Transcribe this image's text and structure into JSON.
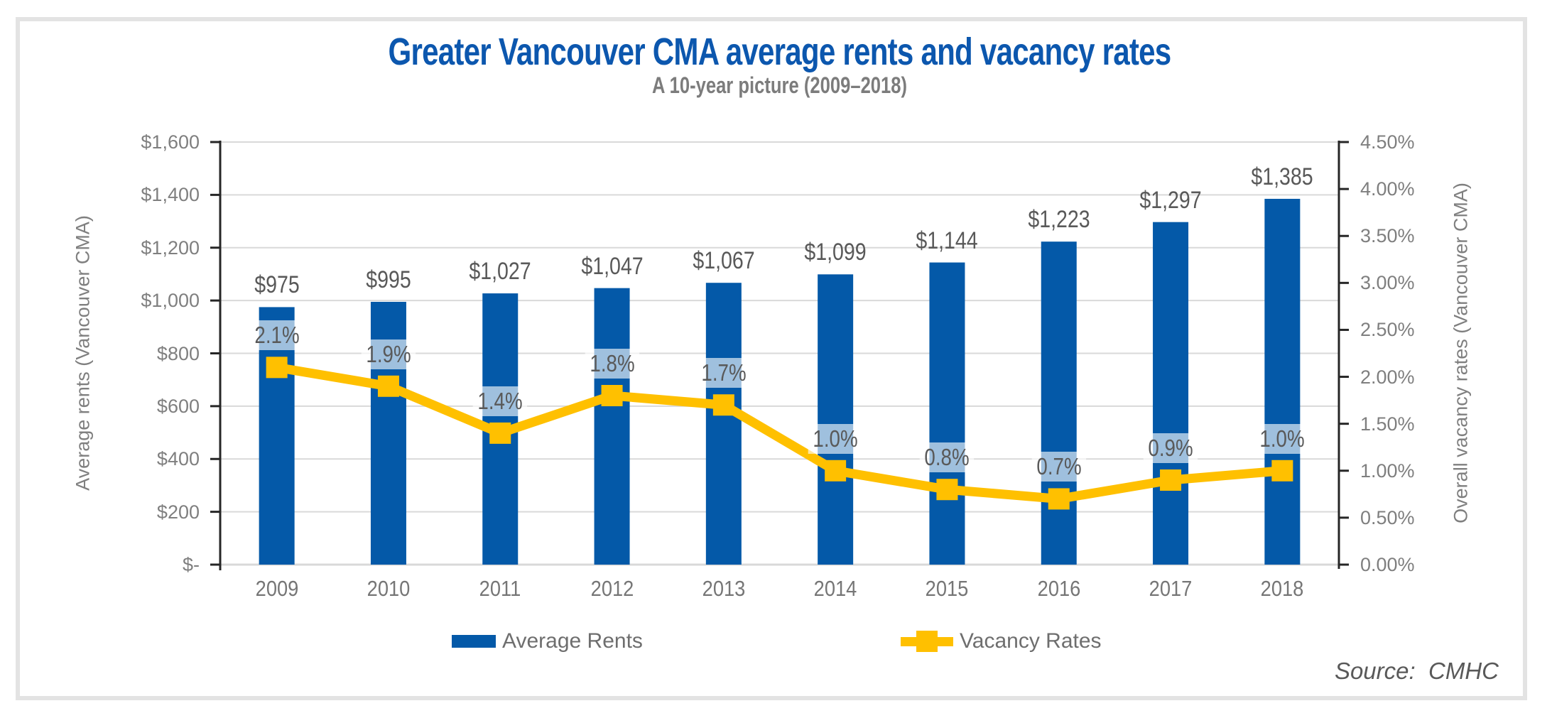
{
  "title": "Greater Vancouver CMA average rents and vacancy rates",
  "subtitle": "A 10-year picture (2009–2018)",
  "source_label": "Source:  CMHC",
  "colors": {
    "bar_blue": "#0459A8",
    "line_gold": "#FFC000",
    "title_blue": "#0C57AE",
    "gridline": "#D9D9D9",
    "axis": "#262626",
    "label_gray": "#595959",
    "tick_gray": "#7F7F7F",
    "label_background": "rgba(255,255,255,0.62)"
  },
  "chart_data": {
    "type": "bar",
    "title": "Greater Vancouver CMA average rents and vacancy rates",
    "subtitle": "A 10-year picture (2009–2018)",
    "categories": [
      "2009",
      "2010",
      "2011",
      "2012",
      "2013",
      "2014",
      "2015",
      "2016",
      "2017",
      "2018"
    ],
    "series": [
      {
        "name": "Average Rents",
        "chart_type": "bar",
        "axis": "left",
        "color": "#0459A8",
        "values": [
          975,
          995,
          1027,
          1047,
          1067,
          1099,
          1144,
          1223,
          1297,
          1385
        ],
        "data_labels": [
          "$975",
          "$995",
          "$1,027",
          "$1,047",
          "$1,067",
          "$1,099",
          "$1,144",
          "$1,223",
          "$1,297",
          "$1,385"
        ]
      },
      {
        "name": "Vacancy Rates",
        "chart_type": "line",
        "axis": "right",
        "color": "#FFC000",
        "values": [
          2.1,
          1.9,
          1.4,
          1.8,
          1.7,
          1.0,
          0.8,
          0.7,
          0.9,
          1.0
        ],
        "data_labels": [
          "2.1%",
          "1.9%",
          "1.4%",
          "1.8%",
          "1.7%",
          "1.0%",
          "0.8%",
          "0.7%",
          "0.9%",
          "1.0%"
        ]
      }
    ],
    "left_axis": {
      "title": "Average rents (Vancouver CMA)",
      "min": 0,
      "max": 1600,
      "tick_step": 200,
      "tick_labels": [
        "$-",
        "$200",
        "$400",
        "$600",
        "$800",
        "$1,000",
        "$1,200",
        "$1,400",
        "$1,600"
      ]
    },
    "right_axis": {
      "title": "Overall vacancy rates (Vancouver CMA)",
      "min": 0,
      "max": 4.5,
      "tick_step": 0.5,
      "tick_labels": [
        "0.00%",
        "0.50%",
        "1.00%",
        "1.50%",
        "2.00%",
        "2.50%",
        "3.00%",
        "3.50%",
        "4.00%",
        "4.50%"
      ]
    },
    "grid": true,
    "legend_position": "bottom",
    "source": "Source:  CMHC"
  }
}
